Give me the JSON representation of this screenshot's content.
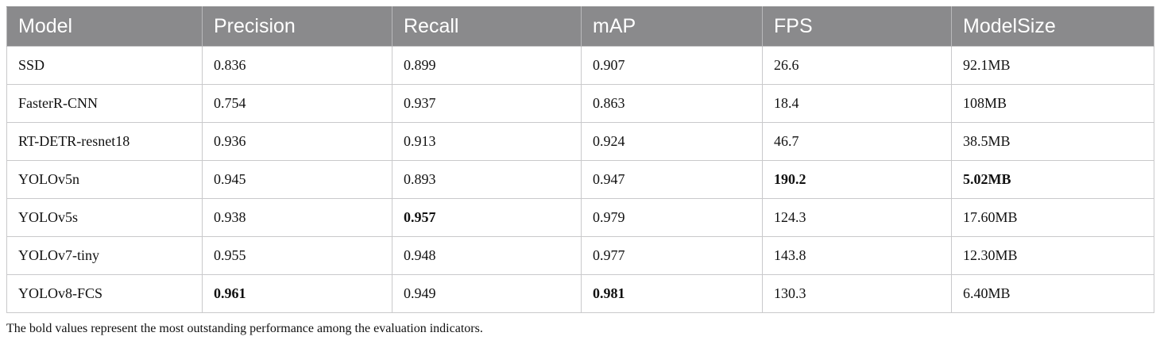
{
  "table": {
    "headers": [
      "Model",
      "Precision",
      "Recall",
      "mAP",
      "FPS",
      "ModelSize"
    ],
    "rows": [
      {
        "cells": [
          "SSD",
          "0.836",
          "0.899",
          "0.907",
          "26.6",
          "92.1MB"
        ],
        "bold": [
          false,
          false,
          false,
          false,
          false,
          false
        ]
      },
      {
        "cells": [
          "FasterR-CNN",
          "0.754",
          "0.937",
          "0.863",
          "18.4",
          "108MB"
        ],
        "bold": [
          false,
          false,
          false,
          false,
          false,
          false
        ]
      },
      {
        "cells": [
          "RT-DETR-resnet18",
          "0.936",
          "0.913",
          "0.924",
          "46.7",
          "38.5MB"
        ],
        "bold": [
          false,
          false,
          false,
          false,
          false,
          false
        ]
      },
      {
        "cells": [
          "YOLOv5n",
          "0.945",
          "0.893",
          "0.947",
          "190.2",
          "5.02MB"
        ],
        "bold": [
          false,
          false,
          false,
          false,
          true,
          true
        ]
      },
      {
        "cells": [
          "YOLOv5s",
          "0.938",
          "0.957",
          "0.979",
          "124.3",
          "17.60MB"
        ],
        "bold": [
          false,
          false,
          true,
          false,
          false,
          false
        ]
      },
      {
        "cells": [
          "YOLOv7-tiny",
          "0.955",
          "0.948",
          "0.977",
          "143.8",
          "12.30MB"
        ],
        "bold": [
          false,
          false,
          false,
          false,
          false,
          false
        ]
      },
      {
        "cells": [
          "YOLOv8-FCS",
          "0.961",
          "0.949",
          "0.981",
          "130.3",
          "6.40MB"
        ],
        "bold": [
          false,
          true,
          false,
          true,
          false,
          false
        ]
      }
    ]
  },
  "footnote": "The bold values represent the most outstanding performance among the evaluation indicators.",
  "colors": {
    "header_bg": "#8a8a8c",
    "header_text": "#ffffff",
    "grid": "#c9c9cb"
  }
}
